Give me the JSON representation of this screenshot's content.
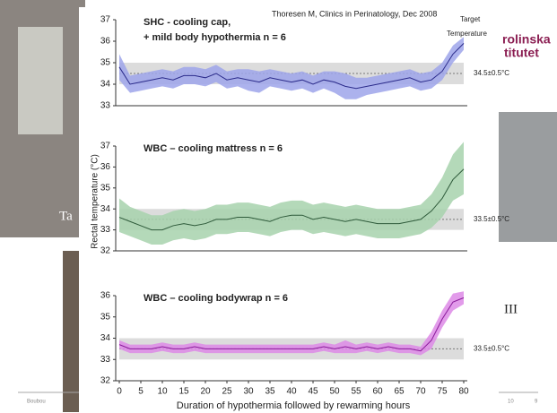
{
  "slide": {
    "logo_top": "rolinska",
    "logo_bottom": "titutet",
    "left_fragment": "Ta",
    "right_fragment": "III",
    "footer_left": "Boubou",
    "footer_mid": "10",
    "footer_page": "9"
  },
  "figure": {
    "source": "Thoresen M, Clinics in Perinatology, Dec 2008",
    "target_top": "Target",
    "target_bottom": "Temperature",
    "ylabel": "Rectal temperature (°C)",
    "xlabel": "Duration of hypothermia followed by rewarming hours"
  },
  "chart_data": [
    {
      "type": "line",
      "title": "SHC - cooling cap,",
      "subtitle": "+ mild body hypothermia n = 6",
      "target_label": "34.5±0.5°C",
      "target_band": [
        34,
        35
      ],
      "target_line": 34.5,
      "band_color": "#dcdcdc",
      "x": [
        0,
        2.5,
        5,
        7.5,
        10,
        12.5,
        15,
        17.5,
        20,
        22.5,
        25,
        27.5,
        30,
        32.5,
        35,
        37.5,
        40,
        42.5,
        45,
        47.5,
        50,
        52.5,
        55,
        57.5,
        60,
        62.5,
        65,
        67.5,
        70,
        72.5,
        75,
        77.5,
        80
      ],
      "xlim": [
        0,
        80
      ],
      "ylim": [
        33,
        37
      ],
      "yticks": [
        33,
        34,
        35,
        36,
        37
      ],
      "series": [
        {
          "color": "#2a2a8a",
          "fill": "#9ea5ea",
          "values": [
            34.8,
            34.0,
            34.1,
            34.2,
            34.3,
            34.2,
            34.4,
            34.4,
            34.3,
            34.5,
            34.2,
            34.3,
            34.2,
            34.1,
            34.3,
            34.2,
            34.1,
            34.2,
            34.0,
            34.2,
            34.1,
            33.9,
            33.8,
            33.9,
            34.0,
            34.1,
            34.2,
            34.3,
            34.1,
            34.2,
            34.6,
            35.4,
            35.9
          ],
          "low": [
            34.2,
            33.6,
            33.7,
            33.8,
            33.9,
            33.8,
            34.0,
            34.0,
            33.9,
            34.1,
            33.8,
            33.9,
            33.7,
            33.6,
            33.9,
            33.8,
            33.7,
            33.8,
            33.6,
            33.8,
            33.6,
            33.3,
            33.3,
            33.5,
            33.6,
            33.7,
            33.8,
            33.9,
            33.7,
            33.8,
            34.2,
            35.0,
            35.6
          ],
          "high": [
            35.4,
            34.4,
            34.5,
            34.6,
            34.7,
            34.6,
            34.8,
            34.8,
            34.7,
            34.9,
            34.6,
            34.7,
            34.7,
            34.6,
            34.7,
            34.6,
            34.5,
            34.6,
            34.4,
            34.6,
            34.6,
            34.5,
            34.3,
            34.3,
            34.4,
            34.5,
            34.6,
            34.7,
            34.5,
            34.6,
            35.0,
            35.8,
            36.2
          ]
        }
      ]
    },
    {
      "type": "line",
      "title": "WBC – cooling mattress n = 6",
      "target_label": "33.5±0.5°C",
      "target_band": [
        33,
        34
      ],
      "target_line": 33.5,
      "band_color": "#dcdcdc",
      "x": [
        0,
        2.5,
        5,
        7.5,
        10,
        12.5,
        15,
        17.5,
        20,
        22.5,
        25,
        27.5,
        30,
        32.5,
        35,
        37.5,
        40,
        42.5,
        45,
        47.5,
        50,
        52.5,
        55,
        57.5,
        60,
        62.5,
        65,
        67.5,
        70,
        72.5,
        75,
        77.5,
        80
      ],
      "xlim": [
        0,
        80
      ],
      "ylim": [
        32,
        37
      ],
      "yticks": [
        32,
        33,
        34,
        35,
        36,
        37
      ],
      "series": [
        {
          "color": "#2e5a3a",
          "fill": "#a7d2ad",
          "values": [
            33.6,
            33.4,
            33.2,
            33.0,
            33.0,
            33.2,
            33.3,
            33.2,
            33.3,
            33.5,
            33.5,
            33.6,
            33.6,
            33.5,
            33.4,
            33.6,
            33.7,
            33.7,
            33.5,
            33.6,
            33.5,
            33.4,
            33.5,
            33.4,
            33.3,
            33.3,
            33.3,
            33.4,
            33.5,
            33.9,
            34.5,
            35.4,
            35.9
          ],
          "low": [
            32.9,
            32.7,
            32.5,
            32.3,
            32.3,
            32.5,
            32.6,
            32.5,
            32.6,
            32.8,
            32.8,
            32.9,
            32.9,
            32.8,
            32.7,
            32.9,
            33.0,
            33.0,
            32.8,
            32.9,
            32.8,
            32.7,
            32.8,
            32.7,
            32.6,
            32.6,
            32.6,
            32.7,
            32.8,
            33.1,
            33.6,
            34.4,
            34.7
          ],
          "high": [
            34.5,
            34.1,
            33.9,
            33.7,
            33.7,
            33.9,
            34.0,
            33.9,
            34.0,
            34.2,
            34.2,
            34.3,
            34.3,
            34.2,
            34.1,
            34.3,
            34.4,
            34.4,
            34.2,
            34.3,
            34.2,
            34.1,
            34.2,
            34.1,
            34.0,
            34.0,
            34.0,
            34.1,
            34.2,
            34.7,
            35.5,
            36.6,
            37.2
          ]
        }
      ]
    },
    {
      "type": "line",
      "title": "WBC – cooling bodywrap n = 6",
      "target_label": "33.5±0.5°C",
      "target_band": [
        33,
        34
      ],
      "target_line": 33.5,
      "band_color": "#dcdcdc",
      "x": [
        0,
        2.5,
        5,
        7.5,
        10,
        12.5,
        15,
        17.5,
        20,
        22.5,
        25,
        27.5,
        30,
        32.5,
        35,
        37.5,
        40,
        42.5,
        45,
        47.5,
        50,
        52.5,
        55,
        57.5,
        60,
        62.5,
        65,
        67.5,
        70,
        72.5,
        75,
        77.5,
        80
      ],
      "xlim": [
        0,
        80
      ],
      "xticks": [
        0,
        5,
        10,
        15,
        20,
        25,
        30,
        35,
        40,
        45,
        50,
        55,
        60,
        65,
        70,
        75,
        80
      ],
      "ylim": [
        32,
        36
      ],
      "yticks": [
        32,
        33,
        34,
        35,
        36
      ],
      "series": [
        {
          "color": "#8a1a9a",
          "fill": "#dd8ae6",
          "values": [
            33.7,
            33.5,
            33.5,
            33.5,
            33.6,
            33.5,
            33.5,
            33.6,
            33.5,
            33.5,
            33.5,
            33.5,
            33.5,
            33.5,
            33.5,
            33.5,
            33.5,
            33.5,
            33.5,
            33.6,
            33.5,
            33.6,
            33.5,
            33.6,
            33.5,
            33.6,
            33.5,
            33.5,
            33.4,
            33.9,
            34.9,
            35.7,
            35.9
          ],
          "low": [
            33.5,
            33.3,
            33.3,
            33.3,
            33.4,
            33.3,
            33.3,
            33.4,
            33.3,
            33.3,
            33.3,
            33.3,
            33.3,
            33.3,
            33.3,
            33.3,
            33.3,
            33.3,
            33.3,
            33.4,
            33.3,
            33.3,
            33.3,
            33.4,
            33.3,
            33.4,
            33.3,
            33.3,
            33.2,
            33.5,
            34.5,
            35.3,
            35.6
          ],
          "high": [
            33.9,
            33.7,
            33.7,
            33.7,
            33.8,
            33.7,
            33.7,
            33.8,
            33.7,
            33.7,
            33.7,
            33.7,
            33.7,
            33.7,
            33.7,
            33.7,
            33.7,
            33.7,
            33.7,
            33.8,
            33.7,
            33.9,
            33.7,
            33.8,
            33.7,
            33.8,
            33.7,
            33.7,
            33.6,
            34.3,
            35.3,
            36.1,
            36.2
          ]
        }
      ]
    }
  ]
}
